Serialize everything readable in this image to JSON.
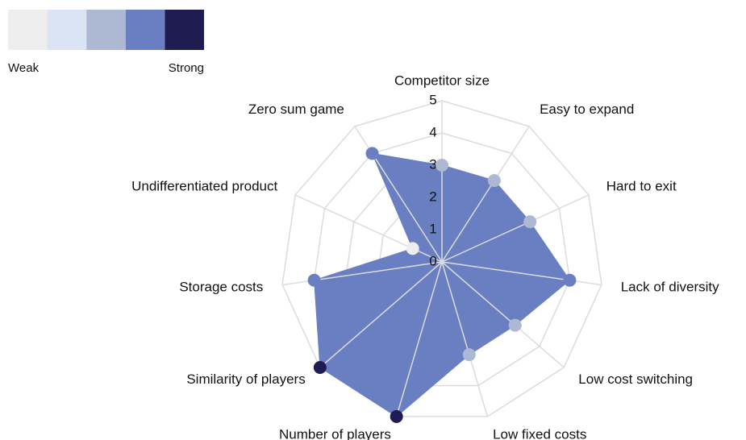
{
  "chart_data": {
    "type": "radar",
    "categories": [
      "Competitor size",
      "Easy to expand",
      "Hard to exit",
      "Lack of diversity",
      "Low cost switching",
      "Low fixed costs",
      "Number of players",
      "Similarity of players",
      "Storage costs",
      "Undifferentiated product",
      "Zero sum game"
    ],
    "values": [
      3,
      3,
      3,
      4,
      3,
      3,
      5,
      5,
      4,
      1,
      4
    ],
    "color": "#6a7fc1",
    "rlim": [
      0,
      5
    ],
    "rticks": [
      0,
      1,
      2,
      3,
      4,
      5
    ],
    "grid": true,
    "legend": {
      "colors": [
        "#eeeeee",
        "#dbe4f5",
        "#adb8d3",
        "#6a7fc1",
        "#1e1c50"
      ],
      "low_label": "Weak",
      "high_label": "Strong"
    }
  }
}
